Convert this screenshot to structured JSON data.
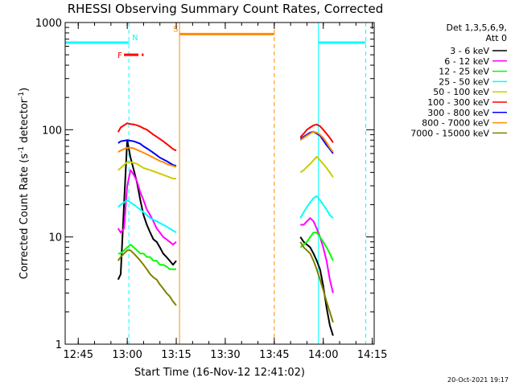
{
  "chart_data": {
    "type": "line",
    "title": "RHESSI Observing Summary Count Rates, Corrected",
    "xlabel": "Start Time (16-Nov-12 12:41:02)",
    "ylabel_main": "Corrected Count Rate (s",
    "ylabel_sup": "-1",
    "ylabel_end": " detector",
    "ylabel_sup2": "-1",
    "ylabel_close": ")",
    "y_scale": "log",
    "ylim": [
      1,
      1000
    ],
    "x_ticks": [
      "12:45",
      "13:00",
      "13:15",
      "13:30",
      "13:45",
      "14:00",
      "14:15"
    ],
    "x_tick_minutes": [
      4,
      19,
      34,
      49,
      64,
      79,
      94
    ],
    "y_ticks": [
      "1",
      "10",
      "100",
      "1000"
    ],
    "legend_header": [
      "Det 1,3,5,6,9,",
      "Att 0"
    ],
    "footer_date": "20-Oct-2021 19:17",
    "series": [
      {
        "name": "3 - 6 keV",
        "color": "#000000",
        "seg1": [
          [
            16.2,
            4
          ],
          [
            17,
            4.5
          ],
          [
            18,
            20
          ],
          [
            19,
            80
          ],
          [
            20,
            55
          ],
          [
            21,
            42
          ],
          [
            22,
            32
          ],
          [
            23,
            22
          ],
          [
            24,
            16
          ],
          [
            25,
            13
          ],
          [
            26,
            11
          ],
          [
            27,
            9.5
          ],
          [
            28,
            9
          ],
          [
            29,
            8
          ],
          [
            30,
            7
          ],
          [
            31,
            6.5
          ],
          [
            32,
            6
          ],
          [
            33,
            5.5
          ],
          [
            34,
            6
          ]
        ],
        "seg2": [
          [
            72,
            10
          ],
          [
            73,
            9
          ],
          [
            74,
            8.5
          ],
          [
            75,
            8
          ],
          [
            76,
            7
          ],
          [
            77,
            6
          ],
          [
            78,
            5
          ],
          [
            79,
            3.5
          ],
          [
            80,
            2.2
          ],
          [
            81,
            1.5
          ],
          [
            82,
            1.2
          ]
        ]
      },
      {
        "name": "6 - 12 keV",
        "color": "#ff00ff",
        "seg1": [
          [
            16.2,
            12
          ],
          [
            17,
            11
          ],
          [
            18,
            12
          ],
          [
            19,
            30
          ],
          [
            20,
            42
          ],
          [
            21,
            38
          ],
          [
            22,
            33
          ],
          [
            23,
            26
          ],
          [
            24,
            22
          ],
          [
            25,
            18
          ],
          [
            26,
            16
          ],
          [
            27,
            14
          ],
          [
            28,
            12
          ],
          [
            29,
            11
          ],
          [
            30,
            10
          ],
          [
            31,
            9.5
          ],
          [
            32,
            9
          ],
          [
            33,
            8.5
          ],
          [
            34,
            9
          ]
        ],
        "seg2": [
          [
            72,
            13
          ],
          [
            73,
            13
          ],
          [
            74,
            14
          ],
          [
            75,
            15
          ],
          [
            76,
            14
          ],
          [
            77,
            12
          ],
          [
            78,
            10
          ],
          [
            79,
            8
          ],
          [
            80,
            6
          ],
          [
            81,
            4
          ],
          [
            82,
            3
          ]
        ]
      },
      {
        "name": "12 - 25 keV",
        "color": "#00ff00",
        "seg1": [
          [
            16.2,
            7
          ],
          [
            17,
            7
          ],
          [
            18,
            7.5
          ],
          [
            19,
            8
          ],
          [
            20,
            8.5
          ],
          [
            21,
            8
          ],
          [
            22,
            7.5
          ],
          [
            23,
            7
          ],
          [
            24,
            7
          ],
          [
            25,
            6.5
          ],
          [
            26,
            6.5
          ],
          [
            27,
            6
          ],
          [
            28,
            6
          ],
          [
            29,
            5.5
          ],
          [
            30,
            5.5
          ],
          [
            31,
            5.3
          ],
          [
            32,
            5
          ],
          [
            33,
            5
          ],
          [
            34,
            5
          ]
        ],
        "seg2": [
          [
            72,
            8
          ],
          [
            73,
            8.5
          ],
          [
            74,
            9
          ],
          [
            75,
            10
          ],
          [
            76,
            11
          ],
          [
            77,
            11
          ],
          [
            78,
            10
          ],
          [
            79,
            9
          ],
          [
            80,
            8
          ],
          [
            81,
            7
          ],
          [
            82,
            6
          ]
        ]
      },
      {
        "name": "25 - 50 keV",
        "color": "#00ffff",
        "seg1": [
          [
            16.2,
            19
          ],
          [
            17,
            20
          ],
          [
            18,
            21
          ],
          [
            19,
            22
          ],
          [
            20,
            21
          ],
          [
            21,
            20
          ],
          [
            22,
            19
          ],
          [
            23,
            18
          ],
          [
            24,
            17
          ],
          [
            25,
            16
          ],
          [
            26,
            15
          ],
          [
            27,
            14.5
          ],
          [
            28,
            14
          ],
          [
            29,
            13.5
          ],
          [
            30,
            13
          ],
          [
            31,
            12.5
          ],
          [
            32,
            12
          ],
          [
            33,
            11.5
          ],
          [
            34,
            11
          ]
        ],
        "seg2": [
          [
            72,
            15
          ],
          [
            73,
            17
          ],
          [
            74,
            19
          ],
          [
            75,
            21
          ],
          [
            76,
            23
          ],
          [
            77,
            24
          ],
          [
            78,
            22
          ],
          [
            79,
            20
          ],
          [
            80,
            18
          ],
          [
            81,
            16
          ],
          [
            82,
            15
          ]
        ]
      },
      {
        "name": "50 - 100 keV",
        "color": "#cccc00",
        "seg1": [
          [
            16.2,
            42
          ],
          [
            17,
            44
          ],
          [
            18,
            47
          ],
          [
            19,
            50
          ],
          [
            20,
            50
          ],
          [
            21,
            49
          ],
          [
            22,
            48
          ],
          [
            23,
            46
          ],
          [
            24,
            44
          ],
          [
            25,
            43
          ],
          [
            26,
            42
          ],
          [
            27,
            41
          ],
          [
            28,
            40
          ],
          [
            29,
            39
          ],
          [
            30,
            38
          ],
          [
            31,
            37
          ],
          [
            32,
            36
          ],
          [
            33,
            35
          ],
          [
            34,
            35
          ]
        ],
        "seg2": [
          [
            72,
            40
          ],
          [
            73,
            42
          ],
          [
            74,
            45
          ],
          [
            75,
            48
          ],
          [
            76,
            52
          ],
          [
            77,
            56
          ],
          [
            78,
            52
          ],
          [
            79,
            48
          ],
          [
            80,
            44
          ],
          [
            81,
            40
          ],
          [
            82,
            36
          ]
        ]
      },
      {
        "name": "100 - 300 keV",
        "color": "#ff0000",
        "seg1": [
          [
            16.2,
            95
          ],
          [
            17,
            105
          ],
          [
            18,
            110
          ],
          [
            19,
            115
          ],
          [
            20,
            113
          ],
          [
            21,
            112
          ],
          [
            22,
            110
          ],
          [
            23,
            107
          ],
          [
            24,
            103
          ],
          [
            25,
            100
          ],
          [
            26,
            95
          ],
          [
            27,
            90
          ],
          [
            28,
            86
          ],
          [
            29,
            82
          ],
          [
            30,
            78
          ],
          [
            31,
            74
          ],
          [
            32,
            70
          ],
          [
            33,
            66
          ],
          [
            34,
            64
          ]
        ],
        "seg2": [
          [
            72,
            85
          ],
          [
            73,
            92
          ],
          [
            74,
            100
          ],
          [
            75,
            105
          ],
          [
            76,
            110
          ],
          [
            77,
            112
          ],
          [
            78,
            108
          ],
          [
            79,
            100
          ],
          [
            80,
            92
          ],
          [
            81,
            84
          ],
          [
            82,
            76
          ]
        ]
      },
      {
        "name": "300 - 800 keV",
        "color": "#0000ff",
        "seg1": [
          [
            16.2,
            75
          ],
          [
            17,
            78
          ],
          [
            18,
            79
          ],
          [
            19,
            80
          ],
          [
            20,
            79
          ],
          [
            21,
            78
          ],
          [
            22,
            76
          ],
          [
            23,
            74
          ],
          [
            24,
            70
          ],
          [
            25,
            67
          ],
          [
            26,
            64
          ],
          [
            27,
            61
          ],
          [
            28,
            58
          ],
          [
            29,
            55
          ],
          [
            30,
            53
          ],
          [
            31,
            51
          ],
          [
            32,
            49
          ],
          [
            33,
            47
          ],
          [
            34,
            46
          ]
        ],
        "seg2": [
          [
            72,
            82
          ],
          [
            73,
            86
          ],
          [
            74,
            90
          ],
          [
            75,
            94
          ],
          [
            76,
            96
          ],
          [
            77,
            92
          ],
          [
            78,
            88
          ],
          [
            79,
            80
          ],
          [
            80,
            72
          ],
          [
            81,
            66
          ],
          [
            82,
            60
          ]
        ]
      },
      {
        "name": "800 - 7000 keV",
        "color": "#ff8c00",
        "seg1": [
          [
            16.2,
            62
          ],
          [
            17,
            64
          ],
          [
            18,
            66
          ],
          [
            19,
            68
          ],
          [
            20,
            68
          ],
          [
            21,
            67
          ],
          [
            22,
            65
          ],
          [
            23,
            63
          ],
          [
            24,
            61
          ],
          [
            25,
            59
          ],
          [
            26,
            57
          ],
          [
            27,
            55
          ],
          [
            28,
            53
          ],
          [
            29,
            51
          ],
          [
            30,
            50
          ],
          [
            31,
            48
          ],
          [
            32,
            47
          ],
          [
            33,
            46
          ],
          [
            34,
            45
          ]
        ],
        "seg2": [
          [
            72,
            80
          ],
          [
            73,
            84
          ],
          [
            74,
            88
          ],
          [
            75,
            92
          ],
          [
            76,
            96
          ],
          [
            77,
            94
          ],
          [
            78,
            90
          ],
          [
            79,
            84
          ],
          [
            80,
            76
          ],
          [
            81,
            68
          ],
          [
            82,
            62
          ]
        ]
      },
      {
        "name": "7000 - 15000 keV",
        "color": "#808000",
        "seg1": [
          [
            16.2,
            6
          ],
          [
            17,
            6.5
          ],
          [
            18,
            7
          ],
          [
            19,
            7.5
          ],
          [
            20,
            7.5
          ],
          [
            21,
            7
          ],
          [
            22,
            6.5
          ],
          [
            23,
            6
          ],
          [
            24,
            5.5
          ],
          [
            25,
            5
          ],
          [
            26,
            4.5
          ],
          [
            27,
            4.2
          ],
          [
            28,
            4
          ],
          [
            29,
            3.6
          ],
          [
            30,
            3.3
          ],
          [
            31,
            3
          ],
          [
            32,
            2.8
          ],
          [
            33,
            2.5
          ],
          [
            34,
            2.3
          ]
        ],
        "seg2": [
          [
            72,
            9
          ],
          [
            73,
            8
          ],
          [
            74,
            7.5
          ],
          [
            75,
            7
          ],
          [
            76,
            6
          ],
          [
            77,
            5
          ],
          [
            78,
            4
          ],
          [
            79,
            3.2
          ],
          [
            80,
            2.5
          ],
          [
            81,
            2
          ],
          [
            82,
            1.6
          ]
        ]
      }
    ],
    "night_markers": {
      "color": "#00ffff",
      "solid_minutes": [
        0,
        77.5
      ],
      "dashed_minutes": [
        19.5,
        92
      ]
    },
    "saa_markers": {
      "color": "#ff8c00",
      "solid_minutes": [
        35
      ],
      "dashed_minutes": [
        64
      ]
    },
    "bars": [
      {
        "label": "N",
        "color": "#00ffff",
        "ranges": [
          [
            0,
            19.5
          ],
          [
            77.5,
            92
          ]
        ],
        "y": 650
      },
      {
        "label": "S",
        "color": "#ff8c00",
        "ranges": [
          [
            35,
            64
          ]
        ],
        "y": 780
      },
      {
        "label": "F",
        "color": "#ff0000",
        "ranges": [
          [
            18,
            24
          ]
        ],
        "y": 500
      }
    ]
  }
}
